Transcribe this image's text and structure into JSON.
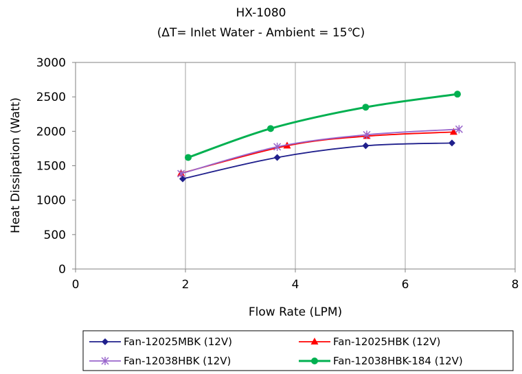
{
  "chart_data": {
    "type": "line",
    "title": "HX-1080",
    "subtitle": "(ΔT= Inlet Water - Ambient = 15℃)",
    "xlabel": "Flow Rate (LPM)",
    "ylabel": "Heat Dissipation (Watt)",
    "xlim": [
      0,
      8
    ],
    "ylim": [
      0,
      3000
    ],
    "xticks": [
      0,
      2,
      4,
      6,
      8
    ],
    "yticks": [
      0,
      500,
      1000,
      1500,
      2000,
      2500,
      3000
    ],
    "grid": "vertical",
    "legend_position": "bottom",
    "series": [
      {
        "name": "Fan-12025MBK (12V)",
        "color": "#1f1f8c",
        "marker": "diamond",
        "x": [
          1.95,
          3.67,
          5.28,
          6.85
        ],
        "y": [
          1310,
          1620,
          1790,
          1830
        ]
      },
      {
        "name": "Fan-12025HBK (12V)",
        "color": "#ff0000",
        "marker": "triangle",
        "x": [
          1.92,
          3.85,
          5.3,
          6.88
        ],
        "y": [
          1390,
          1790,
          1930,
          1990
        ]
      },
      {
        "name": "Fan-12038HBK (12V)",
        "color": "#9966cc",
        "marker": "asterisk",
        "x": [
          1.92,
          3.67,
          5.3,
          6.98
        ],
        "y": [
          1385,
          1775,
          1950,
          2030
        ]
      },
      {
        "name": "Fan-12038HBK-184 (12V)",
        "color": "#00b050",
        "marker": "circle",
        "x": [
          2.05,
          3.55,
          5.28,
          6.95
        ],
        "y": [
          1620,
          2040,
          2350,
          2540
        ]
      }
    ]
  }
}
